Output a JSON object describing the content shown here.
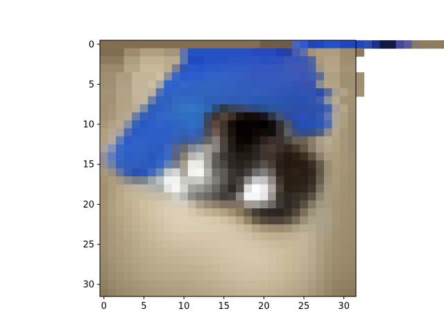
{
  "chart_data": {
    "type": "heatmap",
    "title": "",
    "xlabel": "",
    "ylabel": "",
    "xlim": [
      -0.5,
      31.5
    ],
    "ylim": [
      31.5,
      -0.5
    ],
    "x_ticks": [
      0,
      5,
      10,
      15,
      20,
      25,
      30
    ],
    "y_ticks": [
      0,
      5,
      10,
      15,
      20,
      25,
      30
    ],
    "grid": false,
    "image_size": [
      32,
      32
    ],
    "image_rle": [
      "20:846e52,4:6e5e49,1:4367c1,1:2f58d1,1:1f45b8,1:1f45c7,1:2551c8,1:2550c6,3:1f45c1,1:2f4cb3,1:1f3184,2:0e1a45,1:48479d,1:5a5a98,1:857968,3:8d7d5f,2:7b6a50",
      "3:806c52,2:9d8c6d,3:b0a081,2:a4967e,1:6173a8,3:2551c6,5:2651c6,3:2649c0,1:1f40b4,1:29409c,1:4a59aa,1:5f6daa,1:a39179,3:ad9c7d,2:9e8c6f,1:8e7c5f",
      "3:8d7b5e,2:ad9e82,3:c0b293,2:b9ab91,1:5e75b3,2:1f4ac1,1:2552cb,2:2652c5,1:2a55c3,3:2b54c3,1:2950c1,2:2c50bd,2:3856b9,1:3c5ab5,1:50659c,1:a99a7d,2:b3a383,2:9f8e6f",
      "3:9c8a6c,2:b5a688,3:c7ba9a,1:bdae8f,1:7a7d8c,1:2f56b6,1:2958cb,1:2656c9,2:2b5ac6,1:2f5bc6,3:3158c4,1:3257c1,1:3455be,2:3755bb,1:3d59b8,2:3f58b3,1:4a61a8,1:9d9485,2:b5a586,2:a39274",
      "2:a08e71,2:ad9d7f,3:c3b597,1:cfbf9f,1:8b8f9c,1:3a67c5,1:2b5ccc,2:2f5ccb,1:3260cc,2:3461c8,2:365fc4,1:375bbe,1:3658be,1:3657bc,2:3758bc,2:3a59bb,1:3c55b2,1:3f5aae,1:5d6c97,1:aea085,1:af9e80,3:a08f71",
      "2:a18f73,2:b0a083,2:c3b599,1:cabda2,1:a6a5a2,1:3265c8,1:2d5fcd,1:3365cd,1:3163c7,3:3265c2,2:3361c0,2:325dbc,3:315abc,2:3559bb,1:3653b4,1:3952b2,1:3a53af,1:8b8d93,2:b4a285,3:a09073",
      "2:a39277,2:b2a286,2:c4b69c,1:b9afa2,1:4f71b5,1:2f61c8,1:3264c7,3:3162c0,2:3263bf,2:3360bc,2:325dbb,1:335eba,1:335cba,1:3259b8,2:2e56b7,1:2d52b4,2:3153b3,1:2e4ca6,1:5b6b9c,1:a49d92,1:b3a386,2:a39275",
      "2:a39175,1:b2a283,1:b4a384,1:c2b394,1:c1b6a0,1:687fad,1:3162c2,1:2c61c4,1:3468c0,1:346bc0,1:326ac3,1:3266be,2:2e5fb7,1:2f5fb5,3:2e5cb6,2:2b59b8,1:2b57b5,1:2b55b3,2:2a53b0,1:2851b2,1:3155ab,1:3f5eae,1:8e939b,1:b8a98d,2:a29276",
      "1:a39072,1:a69577,1:b3a384,1:b6a585,1:b8ac9a,1:7b8aa4,1:2f5eb7,1:2c5fbe,1:3164be,1:336cbf,1:3472c3,1:3574c6,1:3271c0,1:2e67b5,1:284f7a,1:2d3b46,1:364657,1:37476a,1:364a7d,1:2d4b84,1:2b518d,2:2c559d,1:2c53a7,2:2b50aa,1:2e50a9,1:2c52ac,1:4462ab,1:a09f9b,1:b5a485,1:a19072",
      "1:a39174,1:a89679,1:b4a587,1:b5a894,1:6b7da0,1:3360bc,1:2b5cc2,1:3265c7,1:3167c5,1:306ac3,1:2f6ec5,1:2e6fc4,1:306bb5,1:33466b,1:3f3431,1:514339,1:3d3125,1:1c140f,1:120a06,1:120d0c,1:15161c,1:2d3649,1:425272,1:2e4c98,1:2a4fb0,1:2951b7,1:2a4faf,1:3258b1,1:5e77b4,1:aca596,1:ae9e81,1:9e8e72",
      "1:a89679,1:b1a284,1:b6a992,1:8790a4,1:3862b8,1:2959c4,1:2c5ec6,1:3162c7,1:2c60c5,1:2c63c4,1:3067c3,1:2d6ec9,1:3069b6,1:404355,1:5c463c,1:413429,1:150f09,1:050100,1:070201,1:070000,1:000000,1:0e0c0d,1:323234,1:4c5566,1:2c4a9a,1:2151b8,1:2752b3,1:2c59b5,1:4d6bb2,1:aba596,1:ae9e80,1:9c8c70",
      "1:b09f80,1:b6a88f,1:a5a19f,1:4c6ab1,1:2c5ac1,1:2c5cc6,1:2e5fc8,1:2b5ec8,1:2b5fc6,1:3063c3,1:3160b5,1:3265c2,1:355eaa,1:484b59,1:6f594e,1:433530,1:1a120c,1:060100,1:050100,1:0d0703,1:120b09,1:100b0d,1:342e2f,1:5a5d65,1:3b5078,1:2f4d8f,1:394f85,1:4e5d80,1:8d8a89,1:b2a58d,1:a69678,1:9c8c70",
      "1:b1a081,1:b2a8a1,1:627bb8,1:2d5dc4,1:2e60cb,1:3060c7,1:2d5ec4,1:2c5fc7,1:2f5fc3,1:3960b0,1:3a5a9d,1:445e9d,1:4c628e,1:646569,1:867c78,1:4b423e,1:211b17,1:0d0500,1:0b0300,1:150f0e,1:2a2220,1:3b2e29,1:3c322e,1:4d4640,1:656057,1:6b6355,1:877e6c,1:a99f89,1:b8ab90,1:b1a284,1:a69578,1:9c8c70",
      "1:ada09a,1:8592b8,1:3b66c1,1:2e61ca,1:2d60c8,1:3062c5,1:2c5cbf,1:295bc2,1:3b67c2,1:556593,1:67696d,1:818896,1:9199a3,1:a19c94,1:8a8480,1:4a4440,1:231d19,1:140e0a,1:1b1510,1:28211e,1:3e3532,1:463a32,1:3a2f26,1:31281e,1:45392a,1:635442,1:867965,1:a59984,1:b3a589,1:b09f80,1:a69578,1:9c8d71",
      "1:928ea0,1:5f7cc0,1:3666c6,1:2c5ec5,1:2e61c7,1:2e5ec2,1:2959be,1:2d5ec4,1:3b69c0,1:59637b,1:888073,1:b4b7b6,1:c6c6c5,1:a09d96,1:605e58,1:3d3833,1:2d2621,1:221c18,1:221c17,1:2c2521,1:3c3431,1:3e332b,1:2e231a,1:231911,1:2b1f16,1:3b2f22,1:5d5041,1:8d806b,1:ab9c81,1:ad9c7c,1:a69576,1:9e8f72",
      "1:948e91,1:6d81ae,1:3961bb,1:2f5ebe,1:2f5ebf,1:2b5bbd,1:285bc0,1:3763c1,1:607fb2,1:77818b,1:a59f8e,1:eeede3,1:e9eae5,1:a3a29e,1:5c5b57,1:4a4641,1:2e2822,1:28221d,1:2f2925,1:3f3935,1:55504c,1:473f37,1:2a1f15,1:231811,1:261a0f,1:281c13,1:3a2f24,1:665b4a,1:9a8d73,1:ab9b7b,1:a69576,1:a09074",
      "1:a5987f,1:968f86,1:6774a0,1:3c5dad,1:2a53b0,1:2a57b8,1:4269bc,1:6a8ab8,1:bfc8cb,1:d5d6d2,1:a9a9a0,1:f3f3ec,1:f6f6f3,1:b3b2ae,1:6e6d6a,1:5e5a56,1:3b3630,1:312c28,1:44403f,1:6c6a6c,1:7e7d7f,1:67605a,1:2f251c,1:281d13,1:2c2116,1:291d13,1:31271d,1:5f5646,1:988c73,1:a99979,1:a59475,1:9e8e72",
      "1:a69373,1:ae9d7d,1:a19886,1:8b8b8d,1:7a7f89,1:7c858f,1:98a3aa,1:b8c0c2,1:f0f2ef,1:f2f2ef,1:cccac3,1:c7c7c1,1:cccbc6,1:a4a29d,1:7e7c77,1:5e5955,1:3a3531,1:47423f,1:8b898a,1:c9c9ca,1:c3c3c4,1:8f8a85,1:3d342a,1:261d13,1:291f15,1:2b2016,1:372c22,1:695f50,1:9e927a,1:a99a7a,1:a39374,1:9d8e71",
      "1:a28f6f,1:ae9d7c,1:b6a685,1:bbad93,1:bdb29f,1:bbb3a5,1:b6b2ab,1:adafad,1:e3e4e1,1:f6f6f3,1:d7d5d0,1:a4a39d,1:9a9993,1:868480,1:6a6662,1:4c4642,1:2e2926,1:514d4a,1:dedcdc,1:fdfdfd,1:ededed,1:aca7a3,1:4a4239,1:282015,1:2c2219,1:30261d,1:41362b,1:79705f,1:a39780,1:a79878,1:a09171,1:9d8e70",
      "1:a49070,1:af9e7d,1:b9a887,1:c3b291,1:c6b797,1:c8ba9f,1:c8bba5,1:c7bda7,1:c9c0ab,1:d1cfc5,1:b9b9b4,1:8d8c88,1:797773,1:6a6965,1:59534e,1:453f3a,1:4a4541,1:898684,1:f6f6f6,1:f7f7f7,1:e6e6e6,1:999594,1:3c3631,1:2e2820,1:362f27,1:3f3830,1:5b5245,1:8d8572,1:a69a81,1:a49676,1:a09172,1:9d8d71",
      "1:a59172,1:b09f7f,1:b9a888,1:c1b190,1:c7b797,1:cdbe9e,1:d1c2a5,1:d4c6ab,1:d6cab3,1:d5cebe,1:d4cdbe,1:c2b8a5,1:aa9f8d,1:988c7a,1:8d7f6e,1:807263,1:807263,1:817366,1:a49a93,1:a19b99,1:8c8786,1:6e6865,1:3e3937,1:2d2822,1:3a342b,1:5a5143,1:837967,1:a19781,1:a79c82,1:a29473,1:a09071,1:9f8e72",
      "1:a49273,1:af9f7f,1:b7a887,1:bdad8e,1:c4b494,1:ccbc9d,1:d1c2a5,1:d6c8ab,1:dbcdb2,1:dccfb3,1:ddd0b4,1:d6c9ab,1:cbbd9e,1:c3b494,1:bcac8d,1:b2a281,1:a39271,1:8e7d5d,1:6b5e4d,1:463d34,1:352c26,1:2e2622,1:2c2523,1:373025,1:524838,1:7c705d,1:9e927c,1:aaa08a,1:a8a088,1:a39575,1:a08f70,1:9e8e71",
      "1:a39072,1:ac9c7d,1:b3a484,1:baab8b,1:c1b293,1:c7b99a,1:cebfa1,1:d3c4a7,1:d8cbad,1:dccfb3,1:ddd0b4,1:dbceb2,1:d9ccb0,1:d7cbaf,1:d5c7aa,1:cfc1a3,1:c6b697,1:b4a483,1:948566,1:6d604b,1:574b3e,1:4f4438,1:4f4437,1:5b5140,1:786d58,1:9c8f7a,1:ada188,1:aca38b,1:aaa18a,1:a49575,1:a08f70,1:9e8e71",
      "1:a18f71,1:aa9a7c,1:b2a283,1:b8aa89,1:bfb091,1:c4b697,1:cabc9d,1:d0c1a4,1:d5c7aa,1:d9ccaf,1:dacdb1,1:d9ccb0,1:d8cbaf,1:d9ccb0,1:d9cbaf,1:d7c9ad,1:d3c5a8,1:cdbea0,1:c3b494,1:b3a385,1:a69677,1:a08f71,1:9d8d6f,1:a39375,1:aea083,1:b8aa8e,1:b6aa8e,1:aca18a,1:a79d86,1:a19272,1:9f8e6f,1:9d8d70",
      "1:a08e70,1:a9997b,1:af9f80,1:b5a686,1:bbac8d,1:c1b294,1:c6b89a,1:cbbd9f,1:cfc1a4,1:d2c5a8,1:d4c6a9,1:d4c7aa,1:d4c7aa,1:d5c7ab,1:d5c7ab,1:d5c7ab,1:d4c6aa,1:d2c4a7,1:cec0a2,1:c9ba9c,1:c4b596,1:c1b192,1:beaf8f,1:c0b091,1:c2b295,1:c2b497,1:bbad91,1:afa186,1:a79b80,1:a19070,1:9e8c6d,1:9c8c6f",
      "1:a08e70,1:a8987a,1:ae9e7f,1:b3a384,1:b8a98a,1:bdaf90,1:c2b395,1:c6b899,1:cbbc9e,1:cdc0a2,1:cec1a3,1:cfc1a4,1:d0c2a5,1:d2c4a7,1:d4c5a9,1:d5c7aa,1:d5c7aa,1:d4c7aa,1:d3c5a9,1:d1c3a6,1:cebfa2,1:cbbc9e,1:c8b99b,1:c7b899,1:c6b799,1:c3b598,1:bcad91,1:afa084,1:a6977b,1:a08f70,1:9d8c6d,1:9b8b6e",
      "1:9e8d6f,1:a69779,1:ac9c7d,1:b1a283,1:b6a787,1:bbac8d,1:bfb092,1:c2b495,1:c5b698,1:c7b89b,1:c9ba9d,1:cabb9e,1:ccbda0,1:cec0a2,1:d1c2a5,1:d3c4a7,1:d4c6a9,1:d5c7aa,1:d5c7aa,1:d5c7aa,1:d3c5a8,1:d0c2a5,1:cdbfa1,1:cabb9d,1:c7b89a,1:c2b497,1:baab8f,1:ae9f82,1:a59678,1:9f8e6f,1:9c8b6c,1:9a8a6d",
      "1:9b8b6e,1:a39477,1:a9997b,1:ae9f80,1:b3a485,1:b7a88a,1:bbac8d,1:beaf90,1:c0b193,1:c2b395,1:c3b597,1:c5b698,1:c7b89a,1:cabb9d,1:ccbea0,1:cfc1a3,1:d2c3a6,1:d4c5a8,1:d5c6a9,1:d4c6a9,1:d3c5a8,1:d0c2a5,1:cdbea1,1:c9ba9c,1:c5b698,1:c0b294,1:b8aa8c,1:ac9e80,1:a39476,1:9d8d6e,1:9a8a6b,1:98886b",
      "1:98886b,1:9f9074,1:a69578,1:ab9b7d,1:b0a082,1:b4a586,1:b7a889,1:baab8c,1:bcad8e,1:bdae90,1:beb091,1:c0b193,1:c2b395,1:c5b698,1:c8b99b,1:cbbd9f,1:cec0a2,1:d1c2a5,1:d2c3a6,1:d2c3a6,1:d1c2a5,1:cec0a2,1:cbbc9e,1:c7b89a,1:c2b495,1:bdaf91,1:b6a88a,1:ab9c7f,1:a19274,1:9b8b6c,1:988869,1:968669",
      "1:948568,1:9c8c70,1:a29274,1:a79779,1:ab9c7e,1:afa082,1:b2a385,1:b5a688,1:b7a889,1:b8a98b,1:b9aa8c,1:bbac8e,1:bdae90,1:c0b193,1:c3b496,1:c6b89a,1:c9bb9d,1:ccbda0,1:cdbfa1,1:cdbfa1,1:ccbea0,1:cabb9e,1:c6b89a,1:c2b496,1:beaf91,1:b9ab8d,1:b2a487,1:a8997c,1:9e8f71,1:988869,1:958566,1:928366",
      "1:8f8064,1:97886b,1:9d8e70,1:a29274,1:a69678,1:aa9a7c,1:ad9d7f,1:b0a082,1:b2a284,1:b3a385,1:b4a486,1:b6a688,1:b8a98b,1:bbab8e,1:bdae91,1:c0b294,1:c3b597,1:c6b89a,1:c8b99b,1:c8b99b,1:c7b89a,1:c5b698,1:c2b395,1:beaf91,1:b9ab8d,1:b5a689,1:ae9f82,1:a49578,1:9b8b6e,1:948466,1:918163,1:8e7f62",
      "1:8a7b60,1:928366,1:98896c,1:9d8d70,1:a19174,1:a59577,1:a8987a,1:ab9b7d,1:ad9d7f,1:ae9e80,1:af9f81,1:b1a183,1:b3a385,1:b5a688,1:b8a98b,1:bbac8e,1:beaf91,1:c1b294,1:c2b395,1:c2b395,1:c2b395,1:c0b193,1:bdae90,1:b9aa8c,1:b5a688,1:b0a184,1:a99a7d,1:a09174,1:97876a,1:908063,1:8d7d5f,1:8a7b5e"
    ]
  }
}
